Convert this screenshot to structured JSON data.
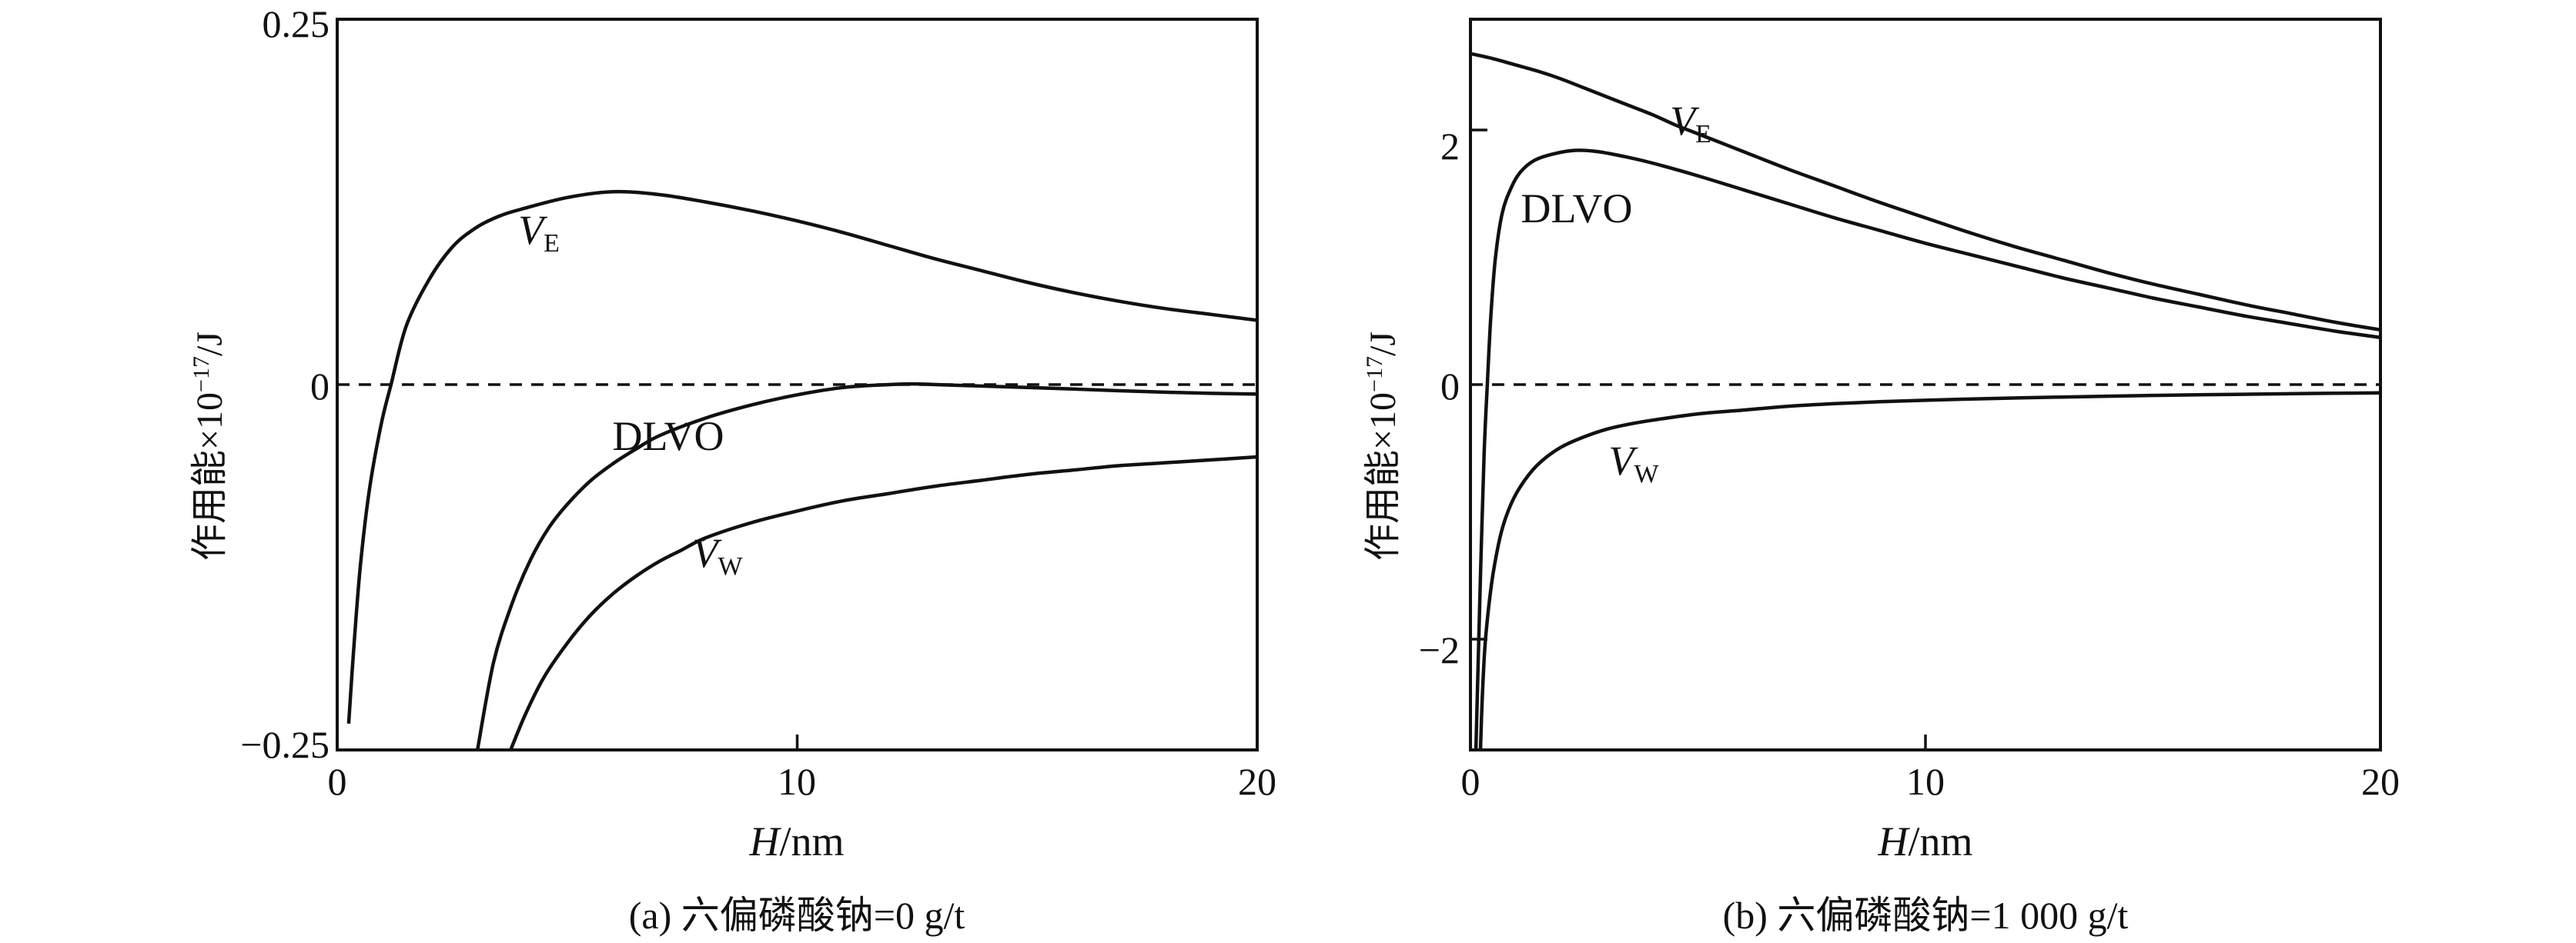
{
  "figure": {
    "background": "#ffffff",
    "ink_color": "#111111"
  },
  "chart_data": {
    "type": "line",
    "panels": [
      {
        "caption": "(a) 六偏磷酸钠=0 g/t",
        "xlabel_italic": "H",
        "xlabel_rest": "/nm",
        "ylabel_pre": "作用能×10",
        "ylabel_sup": "−17",
        "ylabel_post": "/J",
        "xlim": [
          0,
          20
        ],
        "ylim": [
          -0.25,
          0.25
        ],
        "x_tick_labels": [
          "0",
          "10",
          "20"
        ],
        "x_tick_values": [
          0,
          10,
          20
        ],
        "y_tick_labels": [
          "0.25",
          "0",
          "−0.25"
        ],
        "y_tick_values": [
          0.25,
          0,
          -0.25
        ],
        "x_tick_marks": [
          10
        ],
        "y_tick_marks": [],
        "zero_line": "dashed",
        "grid": "off",
        "series": [
          {
            "name": "VE",
            "label_main": "V",
            "label_sub": "E",
            "points": [
              [
                0.25,
                -0.232
              ],
              [
                0.35,
                -0.185
              ],
              [
                0.5,
                -0.125
              ],
              [
                0.7,
                -0.072
              ],
              [
                0.95,
                -0.028
              ],
              [
                1.17,
                0
              ],
              [
                1.5,
                0.04
              ],
              [
                2,
                0.072
              ],
              [
                2.5,
                0.094
              ],
              [
                3,
                0.107
              ],
              [
                3.5,
                0.115
              ],
              [
                4,
                0.12
              ],
              [
                5,
                0.128
              ],
              [
                6,
                0.132
              ],
              [
                7,
                0.13
              ],
              [
                8,
                0.125
              ],
              [
                9,
                0.119
              ],
              [
                10,
                0.112
              ],
              [
                11,
                0.104
              ],
              [
                12,
                0.095
              ],
              [
                13,
                0.086
              ],
              [
                14,
                0.078
              ],
              [
                15,
                0.07
              ],
              [
                16,
                0.063
              ],
              [
                17,
                0.057
              ],
              [
                18,
                0.052
              ],
              [
                19,
                0.048
              ],
              [
                20,
                0.044
              ]
            ]
          },
          {
            "name": "DLVO",
            "label_main": "DLVO",
            "label_sub": "",
            "points": [
              [
                3.05,
                -0.25
              ],
              [
                3.4,
                -0.19
              ],
              [
                3.8,
                -0.15
              ],
              [
                4.2,
                -0.12
              ],
              [
                4.6,
                -0.098
              ],
              [
                5,
                -0.082
              ],
              [
                5.5,
                -0.066
              ],
              [
                6,
                -0.054
              ],
              [
                6.5,
                -0.044
              ],
              [
                7,
                -0.035
              ],
              [
                8,
                -0.023
              ],
              [
                9,
                -0.014
              ],
              [
                10,
                -0.007
              ],
              [
                11,
                -0.002
              ],
              [
                12,
                0.0
              ],
              [
                12.5,
                0.0005
              ],
              [
                13,
                0.0
              ],
              [
                14,
                -0.001
              ],
              [
                15,
                -0.002
              ],
              [
                16,
                -0.003
              ],
              [
                17,
                -0.0042
              ],
              [
                18,
                -0.0052
              ],
              [
                19,
                -0.006
              ],
              [
                20,
                -0.0065
              ]
            ]
          },
          {
            "name": "VW",
            "label_main": "V",
            "label_sub": "W",
            "points": [
              [
                3.77,
                -0.25
              ],
              [
                4.1,
                -0.225
              ],
              [
                4.5,
                -0.2
              ],
              [
                5,
                -0.177
              ],
              [
                5.5,
                -0.158
              ],
              [
                6,
                -0.143
              ],
              [
                6.5,
                -0.131
              ],
              [
                7,
                -0.121
              ],
              [
                7.5,
                -0.113
              ],
              [
                8,
                -0.105
              ],
              [
                9,
                -0.0945
              ],
              [
                10,
                -0.0865
              ],
              [
                11,
                -0.0795
              ],
              [
                12,
                -0.0745
              ],
              [
                13,
                -0.0695
              ],
              [
                14,
                -0.0655
              ],
              [
                15,
                -0.0615
              ],
              [
                16,
                -0.0585
              ],
              [
                17,
                -0.0555
              ],
              [
                18,
                -0.0535
              ],
              [
                19,
                -0.0515
              ],
              [
                20,
                -0.0495
              ]
            ]
          }
        ]
      },
      {
        "caption": "(b) 六偏磷酸钠=1 000 g/t",
        "xlabel_italic": "H",
        "xlabel_rest": "/nm",
        "ylabel_pre": "作用能×10",
        "ylabel_sup": "−17",
        "ylabel_post": "/J",
        "xlim": [
          0,
          20
        ],
        "ylim": [
          -2.87,
          2.87
        ],
        "x_tick_labels": [
          "0",
          "10",
          "20"
        ],
        "x_tick_values": [
          0,
          10,
          20
        ],
        "y_tick_labels": [
          "2",
          "0",
          "−2"
        ],
        "y_tick_values": [
          2,
          0,
          -2
        ],
        "x_tick_marks": [
          10
        ],
        "y_tick_marks": [
          2,
          -2
        ],
        "zero_line": "dashed",
        "grid": "off",
        "series": [
          {
            "name": "VE",
            "label_main": "V",
            "label_sub": "E",
            "points": [
              [
                0,
                2.6
              ],
              [
                0.5,
                2.56
              ],
              [
                1,
                2.51
              ],
              [
                1.5,
                2.46
              ],
              [
                2,
                2.4
              ],
              [
                2.5,
                2.33
              ],
              [
                3,
                2.26
              ],
              [
                3.5,
                2.19
              ],
              [
                4,
                2.12
              ],
              [
                4.5,
                2.04
              ],
              [
                5,
                1.97
              ],
              [
                5.5,
                1.9
              ],
              [
                6,
                1.83
              ],
              [
                7,
                1.69
              ],
              [
                8,
                1.56
              ],
              [
                9,
                1.43
              ],
              [
                10,
                1.31
              ],
              [
                11,
                1.19
              ],
              [
                12,
                1.08
              ],
              [
                13,
                0.98
              ],
              [
                14,
                0.88
              ],
              [
                15,
                0.79
              ],
              [
                16,
                0.71
              ],
              [
                17,
                0.63
              ],
              [
                18,
                0.56
              ],
              [
                19,
                0.49
              ],
              [
                20,
                0.43
              ]
            ]
          },
          {
            "name": "DLVO",
            "label_main": "DLVO",
            "label_sub": "",
            "points": [
              [
                0.12,
                -2.87
              ],
              [
                0.16,
                -2.3
              ],
              [
                0.22,
                -1.5
              ],
              [
                0.3,
                -0.55
              ],
              [
                0.37,
                0
              ],
              [
                0.45,
                0.55
              ],
              [
                0.55,
                1.0
              ],
              [
                0.7,
                1.35
              ],
              [
                0.9,
                1.55
              ],
              [
                1.1,
                1.67
              ],
              [
                1.4,
                1.76
              ],
              [
                1.8,
                1.81
              ],
              [
                2.3,
                1.84
              ],
              [
                2.8,
                1.83
              ],
              [
                3.4,
                1.79
              ],
              [
                4,
                1.74
              ],
              [
                5,
                1.64
              ],
              [
                6,
                1.53
              ],
              [
                7,
                1.42
              ],
              [
                8,
                1.31
              ],
              [
                9,
                1.21
              ],
              [
                10,
                1.11
              ],
              [
                11,
                1.02
              ],
              [
                12,
                0.93
              ],
              [
                13,
                0.84
              ],
              [
                14,
                0.76
              ],
              [
                15,
                0.68
              ],
              [
                16,
                0.61
              ],
              [
                17,
                0.54
              ],
              [
                18,
                0.48
              ],
              [
                19,
                0.42
              ],
              [
                20,
                0.37
              ]
            ]
          },
          {
            "name": "VW",
            "label_main": "V",
            "label_sub": "W",
            "points": [
              [
                0.22,
                -2.87
              ],
              [
                0.26,
                -2.45
              ],
              [
                0.32,
                -2.05
              ],
              [
                0.4,
                -1.75
              ],
              [
                0.5,
                -1.48
              ],
              [
                0.65,
                -1.2
              ],
              [
                0.8,
                -1.02
              ],
              [
                1,
                -0.86
              ],
              [
                1.3,
                -0.7
              ],
              [
                1.6,
                -0.59
              ],
              [
                2,
                -0.49
              ],
              [
                2.5,
                -0.41
              ],
              [
                3,
                -0.35
              ],
              [
                3.5,
                -0.31
              ],
              [
                4,
                -0.28
              ],
              [
                5,
                -0.23
              ],
              [
                6,
                -0.2
              ],
              [
                7,
                -0.17
              ],
              [
                8,
                -0.15
              ],
              [
                9,
                -0.135
              ],
              [
                10,
                -0.123
              ],
              [
                11,
                -0.113
              ],
              [
                12,
                -0.105
              ],
              [
                13,
                -0.098
              ],
              [
                14,
                -0.091
              ],
              [
                15,
                -0.085
              ],
              [
                16,
                -0.08
              ],
              [
                17,
                -0.076
              ],
              [
                18,
                -0.072
              ],
              [
                19,
                -0.068
              ],
              [
                20,
                -0.065
              ]
            ]
          }
        ]
      }
    ]
  }
}
